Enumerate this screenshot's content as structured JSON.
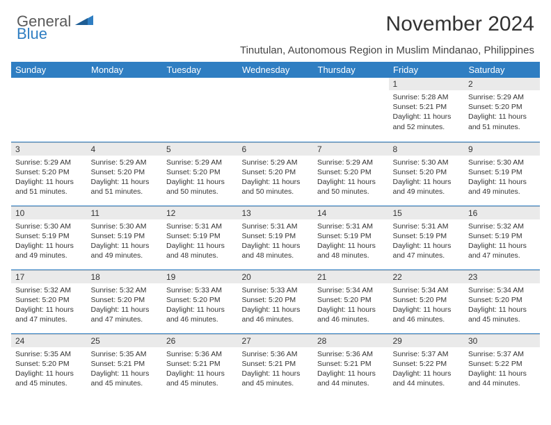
{
  "logo": {
    "word1": "General",
    "word2": "Blue"
  },
  "title": "November 2024",
  "location": "Tinutulan, Autonomous Region in Muslim Mindanao, Philippines",
  "colors": {
    "header_bg": "#2f7ec2",
    "header_text": "#ffffff",
    "daynum_bg": "#eaeaea",
    "border": "#2f7ec2",
    "logo_gray": "#5a5a5a",
    "logo_blue": "#2f7ec2",
    "body_text": "#333333",
    "background": "#ffffff"
  },
  "typography": {
    "title_fontsize": 30,
    "location_fontsize": 15,
    "dayheader_fontsize": 13,
    "daynum_fontsize": 12,
    "daytext_fontsize": 10.5
  },
  "day_headers": [
    "Sunday",
    "Monday",
    "Tuesday",
    "Wednesday",
    "Thursday",
    "Friday",
    "Saturday"
  ],
  "weeks": [
    [
      {
        "n": "",
        "lines": []
      },
      {
        "n": "",
        "lines": []
      },
      {
        "n": "",
        "lines": []
      },
      {
        "n": "",
        "lines": []
      },
      {
        "n": "",
        "lines": []
      },
      {
        "n": "1",
        "lines": [
          "Sunrise: 5:28 AM",
          "Sunset: 5:21 PM",
          "Daylight: 11 hours and 52 minutes."
        ]
      },
      {
        "n": "2",
        "lines": [
          "Sunrise: 5:29 AM",
          "Sunset: 5:20 PM",
          "Daylight: 11 hours and 51 minutes."
        ]
      }
    ],
    [
      {
        "n": "3",
        "lines": [
          "Sunrise: 5:29 AM",
          "Sunset: 5:20 PM",
          "Daylight: 11 hours and 51 minutes."
        ]
      },
      {
        "n": "4",
        "lines": [
          "Sunrise: 5:29 AM",
          "Sunset: 5:20 PM",
          "Daylight: 11 hours and 51 minutes."
        ]
      },
      {
        "n": "5",
        "lines": [
          "Sunrise: 5:29 AM",
          "Sunset: 5:20 PM",
          "Daylight: 11 hours and 50 minutes."
        ]
      },
      {
        "n": "6",
        "lines": [
          "Sunrise: 5:29 AM",
          "Sunset: 5:20 PM",
          "Daylight: 11 hours and 50 minutes."
        ]
      },
      {
        "n": "7",
        "lines": [
          "Sunrise: 5:29 AM",
          "Sunset: 5:20 PM",
          "Daylight: 11 hours and 50 minutes."
        ]
      },
      {
        "n": "8",
        "lines": [
          "Sunrise: 5:30 AM",
          "Sunset: 5:20 PM",
          "Daylight: 11 hours and 49 minutes."
        ]
      },
      {
        "n": "9",
        "lines": [
          "Sunrise: 5:30 AM",
          "Sunset: 5:19 PM",
          "Daylight: 11 hours and 49 minutes."
        ]
      }
    ],
    [
      {
        "n": "10",
        "lines": [
          "Sunrise: 5:30 AM",
          "Sunset: 5:19 PM",
          "Daylight: 11 hours and 49 minutes."
        ]
      },
      {
        "n": "11",
        "lines": [
          "Sunrise: 5:30 AM",
          "Sunset: 5:19 PM",
          "Daylight: 11 hours and 49 minutes."
        ]
      },
      {
        "n": "12",
        "lines": [
          "Sunrise: 5:31 AM",
          "Sunset: 5:19 PM",
          "Daylight: 11 hours and 48 minutes."
        ]
      },
      {
        "n": "13",
        "lines": [
          "Sunrise: 5:31 AM",
          "Sunset: 5:19 PM",
          "Daylight: 11 hours and 48 minutes."
        ]
      },
      {
        "n": "14",
        "lines": [
          "Sunrise: 5:31 AM",
          "Sunset: 5:19 PM",
          "Daylight: 11 hours and 48 minutes."
        ]
      },
      {
        "n": "15",
        "lines": [
          "Sunrise: 5:31 AM",
          "Sunset: 5:19 PM",
          "Daylight: 11 hours and 47 minutes."
        ]
      },
      {
        "n": "16",
        "lines": [
          "Sunrise: 5:32 AM",
          "Sunset: 5:19 PM",
          "Daylight: 11 hours and 47 minutes."
        ]
      }
    ],
    [
      {
        "n": "17",
        "lines": [
          "Sunrise: 5:32 AM",
          "Sunset: 5:20 PM",
          "Daylight: 11 hours and 47 minutes."
        ]
      },
      {
        "n": "18",
        "lines": [
          "Sunrise: 5:32 AM",
          "Sunset: 5:20 PM",
          "Daylight: 11 hours and 47 minutes."
        ]
      },
      {
        "n": "19",
        "lines": [
          "Sunrise: 5:33 AM",
          "Sunset: 5:20 PM",
          "Daylight: 11 hours and 46 minutes."
        ]
      },
      {
        "n": "20",
        "lines": [
          "Sunrise: 5:33 AM",
          "Sunset: 5:20 PM",
          "Daylight: 11 hours and 46 minutes."
        ]
      },
      {
        "n": "21",
        "lines": [
          "Sunrise: 5:34 AM",
          "Sunset: 5:20 PM",
          "Daylight: 11 hours and 46 minutes."
        ]
      },
      {
        "n": "22",
        "lines": [
          "Sunrise: 5:34 AM",
          "Sunset: 5:20 PM",
          "Daylight: 11 hours and 46 minutes."
        ]
      },
      {
        "n": "23",
        "lines": [
          "Sunrise: 5:34 AM",
          "Sunset: 5:20 PM",
          "Daylight: 11 hours and 45 minutes."
        ]
      }
    ],
    [
      {
        "n": "24",
        "lines": [
          "Sunrise: 5:35 AM",
          "Sunset: 5:20 PM",
          "Daylight: 11 hours and 45 minutes."
        ]
      },
      {
        "n": "25",
        "lines": [
          "Sunrise: 5:35 AM",
          "Sunset: 5:21 PM",
          "Daylight: 11 hours and 45 minutes."
        ]
      },
      {
        "n": "26",
        "lines": [
          "Sunrise: 5:36 AM",
          "Sunset: 5:21 PM",
          "Daylight: 11 hours and 45 minutes."
        ]
      },
      {
        "n": "27",
        "lines": [
          "Sunrise: 5:36 AM",
          "Sunset: 5:21 PM",
          "Daylight: 11 hours and 45 minutes."
        ]
      },
      {
        "n": "28",
        "lines": [
          "Sunrise: 5:36 AM",
          "Sunset: 5:21 PM",
          "Daylight: 11 hours and 44 minutes."
        ]
      },
      {
        "n": "29",
        "lines": [
          "Sunrise: 5:37 AM",
          "Sunset: 5:22 PM",
          "Daylight: 11 hours and 44 minutes."
        ]
      },
      {
        "n": "30",
        "lines": [
          "Sunrise: 5:37 AM",
          "Sunset: 5:22 PM",
          "Daylight: 11 hours and 44 minutes."
        ]
      }
    ]
  ]
}
